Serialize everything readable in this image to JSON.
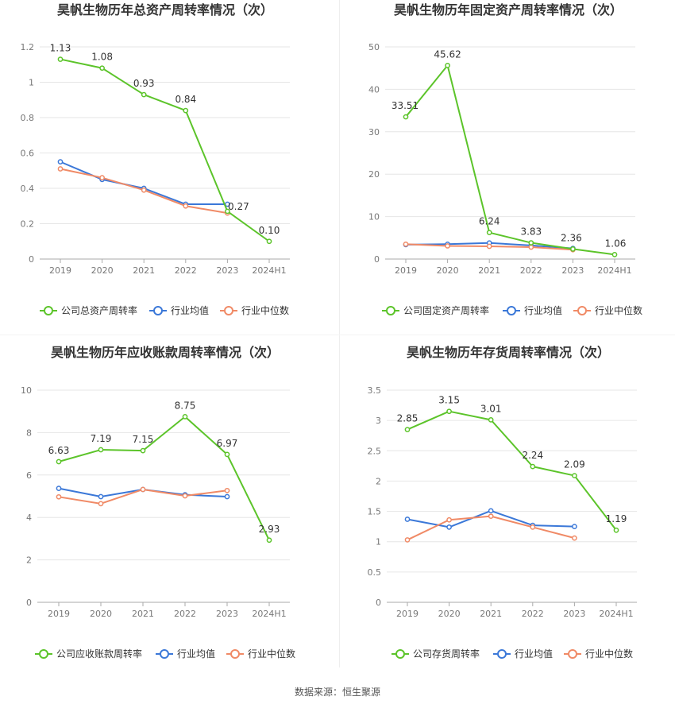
{
  "source_label": "数据来源：恒生聚源",
  "colors": {
    "company": "#5cc42a",
    "avg": "#3b78d8",
    "median": "#f08a66"
  },
  "chart_data": [
    {
      "type": "line",
      "title": "昊帆生物历年总资产周转率情况（次）",
      "categories": [
        "2019",
        "2020",
        "2021",
        "2022",
        "2023",
        "2024H1"
      ],
      "ylim": [
        0,
        1.2
      ],
      "yticks": [
        "0",
        "0.2",
        "0.4",
        "0.6",
        "0.8",
        "1",
        "1.2"
      ],
      "series": [
        {
          "name": "公司总资产周转率",
          "values": [
            1.13,
            1.08,
            0.93,
            0.84,
            0.27,
            0.1
          ],
          "labels": [
            "1.13",
            "1.08",
            "0.93",
            "0.84",
            "0.27",
            "0.10"
          ]
        },
        {
          "name": "行业均值",
          "values": [
            0.55,
            0.45,
            0.4,
            0.31,
            0.31,
            null
          ]
        },
        {
          "name": "行业中位数",
          "values": [
            0.51,
            0.46,
            0.39,
            0.3,
            0.26,
            null
          ]
        }
      ]
    },
    {
      "type": "line",
      "title": "昊帆生物历年固定资产周转率情况（次）",
      "categories": [
        "2019",
        "2020",
        "2021",
        "2022",
        "2023",
        "2024H1"
      ],
      "ylim": [
        0,
        50
      ],
      "yticks": [
        "0",
        "10",
        "20",
        "30",
        "40",
        "50"
      ],
      "series": [
        {
          "name": "公司固定资产周转率",
          "values": [
            33.51,
            45.62,
            6.24,
            3.83,
            2.36,
            1.06
          ],
          "labels": [
            "33.51",
            "45.62",
            "6.24",
            "3.83",
            "2.36",
            "1.06"
          ]
        },
        {
          "name": "行业均值",
          "values": [
            3.4,
            3.5,
            3.8,
            3.2,
            2.5,
            null
          ]
        },
        {
          "name": "行业中位数",
          "values": [
            3.5,
            3.1,
            3.0,
            2.8,
            2.2,
            null
          ]
        }
      ]
    },
    {
      "type": "line",
      "title": "昊帆生物历年应收账款周转率情况（次）",
      "categories": [
        "2019",
        "2020",
        "2021",
        "2022",
        "2023",
        "2024H1"
      ],
      "ylim": [
        0,
        10
      ],
      "yticks": [
        "0",
        "2",
        "4",
        "6",
        "8",
        "10"
      ],
      "series": [
        {
          "name": "公司应收账款周转率",
          "values": [
            6.63,
            7.19,
            7.15,
            8.75,
            6.97,
            2.93
          ],
          "labels": [
            "6.63",
            "7.19",
            "7.15",
            "8.75",
            "6.97",
            "2.93"
          ]
        },
        {
          "name": "行业均值",
          "values": [
            5.37,
            4.98,
            5.32,
            5.07,
            4.98,
            null
          ]
        },
        {
          "name": "行业中位数",
          "values": [
            4.97,
            4.65,
            5.32,
            5.02,
            5.27,
            null
          ]
        }
      ]
    },
    {
      "type": "line",
      "title": "昊帆生物历年存货周转率情况（次）",
      "categories": [
        "2019",
        "2020",
        "2021",
        "2022",
        "2023",
        "2024H1"
      ],
      "ylim": [
        0,
        3.5
      ],
      "yticks": [
        "0",
        "0.5",
        "1",
        "1.5",
        "2",
        "2.5",
        "3",
        "3.5"
      ],
      "series": [
        {
          "name": "公司存货周转率",
          "values": [
            2.85,
            3.15,
            3.01,
            2.24,
            2.09,
            1.19
          ],
          "labels": [
            "2.85",
            "3.15",
            "3.01",
            "2.24",
            "2.09",
            "1.19"
          ]
        },
        {
          "name": "行业均值",
          "values": [
            1.37,
            1.24,
            1.51,
            1.27,
            1.25,
            null
          ]
        },
        {
          "name": "行业中位数",
          "values": [
            1.03,
            1.36,
            1.42,
            1.24,
            1.06,
            null
          ]
        }
      ]
    }
  ]
}
